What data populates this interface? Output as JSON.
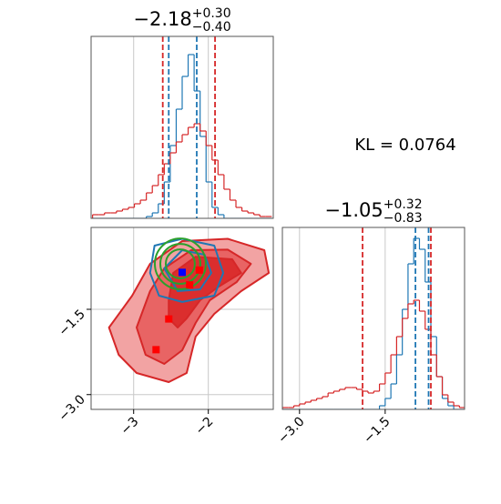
{
  "annotation": "KL = 0.0764",
  "chart_data": [
    {
      "type": "histogram",
      "title": {
        "value": "−2.18",
        "upper": "+0.30",
        "lower": "−0.40"
      },
      "xlim": [
        -3.57,
        -1.13
      ],
      "ylim": [
        0,
        100
      ],
      "xgrid": [
        -3,
        -2
      ],
      "bins": [
        -3.55,
        -3.47,
        -3.39,
        -3.31,
        -3.23,
        -3.15,
        -3.07,
        -2.99,
        -2.91,
        -2.83,
        -2.75,
        -2.67,
        -2.59,
        -2.51,
        -2.43,
        -2.35,
        -2.27,
        -2.19,
        -2.11,
        -2.03,
        -1.95,
        -1.87,
        -1.79,
        -1.71,
        -1.63,
        -1.55,
        -1.47,
        -1.39,
        -1.31,
        -1.23,
        -1.15
      ],
      "series": [
        {
          "color": "#1f77b4",
          "counts": [
            0,
            0,
            0,
            0,
            0,
            0,
            0,
            0,
            0,
            1,
            3,
            8,
            20,
            40,
            60,
            78,
            90,
            70,
            45,
            20,
            6,
            2,
            0,
            0,
            0,
            0,
            0,
            0,
            0,
            0
          ]
        },
        {
          "color": "#d62728",
          "counts": [
            2,
            2,
            3,
            3,
            4,
            5,
            6,
            8,
            10,
            14,
            18,
            24,
            30,
            36,
            42,
            46,
            50,
            52,
            48,
            40,
            32,
            24,
            16,
            10,
            6,
            4,
            3,
            2,
            1,
            1
          ]
        }
      ],
      "vlines": [
        {
          "value": -2.61,
          "color": "#d62728"
        },
        {
          "value": -1.91,
          "color": "#d62728"
        },
        {
          "value": -2.53,
          "color": "#1f77b4"
        },
        {
          "value": -2.155,
          "color": "#1f77b4"
        }
      ]
    },
    {
      "type": "contour",
      "xlim": [
        -3.57,
        -1.13
      ],
      "ylim": [
        -3.26,
        -0.06
      ],
      "xticks": [
        {
          "value": -3,
          "label": "−3"
        },
        {
          "value": -2,
          "label": "−2"
        }
      ],
      "yticks": [
        {
          "value": -1.5,
          "label": "−1.5"
        },
        {
          "value": -3,
          "label": "−3.0"
        }
      ],
      "grid": true,
      "contours": [
        {
          "fill": "#f2a3a3",
          "stroke": "#d62728",
          "x": [
            -3.02,
            -2.78,
            -2.35,
            -1.74,
            -1.25,
            -1.19,
            -1.56,
            -1.92,
            -2.17,
            -2.29,
            -2.53,
            -2.96,
            -3.2,
            -3.33
          ],
          "y": [
            -1.26,
            -0.7,
            -0.3,
            -0.26,
            -0.46,
            -0.86,
            -1.18,
            -1.58,
            -1.98,
            -2.62,
            -2.78,
            -2.62,
            -2.3,
            -1.82
          ]
        },
        {
          "fill": "#e86464",
          "stroke": "#d62728",
          "x": [
            -2.78,
            -2.59,
            -2.23,
            -1.74,
            -1.43,
            -1.62,
            -1.98,
            -2.17,
            -2.35,
            -2.59,
            -2.84,
            -2.96
          ],
          "y": [
            -1.18,
            -0.78,
            -0.46,
            -0.45,
            -0.7,
            -1.02,
            -1.34,
            -1.74,
            -2.22,
            -2.46,
            -2.3,
            -1.82
          ]
        },
        {
          "fill": "#db2e2e",
          "stroke": "#d62728",
          "x": [
            -2.53,
            -2.47,
            -2.17,
            -1.68,
            -1.56,
            -1.86,
            -2.11,
            -2.29,
            -2.41,
            -2.53
          ],
          "y": [
            -1.34,
            -0.86,
            -0.575,
            -0.62,
            -0.86,
            -1.1,
            -1.34,
            -1.66,
            -1.82,
            -1.66
          ]
        },
        {
          "fill": "none",
          "stroke": "#1f77b4",
          "x": [
            -2.78,
            -2.72,
            -2.35,
            -1.92,
            -1.8,
            -1.92,
            -2.35,
            -2.66
          ],
          "y": [
            -0.86,
            -0.38,
            -0.26,
            -0.38,
            -0.86,
            -1.26,
            -1.37,
            -1.26
          ]
        },
        {
          "fill": "none",
          "stroke": "#1f77b4",
          "x": [
            -2.59,
            -2.35,
            -2.05,
            -1.96,
            -2.11,
            -2.41
          ],
          "y": [
            -0.78,
            -0.46,
            -0.54,
            -0.86,
            -1.15,
            -1.18
          ]
        }
      ],
      "ellipses": {
        "color": "#2ca02c",
        "cx": -2.375,
        "cy": -0.7,
        "rx": [
          0.195,
          0.268,
          0.341
        ],
        "ry": [
          0.255,
          0.351,
          0.447
        ]
      },
      "points": [
        {
          "color": "#0000ff",
          "x": [
            -2.35
          ],
          "y": [
            -0.85
          ]
        },
        {
          "color": "#ff0000",
          "x": [
            -2.12,
            -2.25,
            -2.53,
            -2.7
          ],
          "y": [
            -0.81,
            -1.07,
            -1.67,
            -2.21
          ]
        }
      ]
    },
    {
      "type": "histogram",
      "title": {
        "value": "−1.05",
        "upper": "+0.32",
        "lower": "−0.83"
      },
      "xlim": [
        -3.3,
        -0.11
      ],
      "ylim": [
        0,
        100
      ],
      "xticks": [
        {
          "value": -3,
          "label": "−3.0"
        },
        {
          "value": -1.5,
          "label": "−1.5"
        }
      ],
      "xgrid": [
        -3,
        -1.5
      ],
      "bins": [
        -3.3,
        -3.2,
        -3.1,
        -3.0,
        -2.9,
        -2.8,
        -2.7,
        -2.6,
        -2.5,
        -2.4,
        -2.3,
        -2.2,
        -2.1,
        -2.0,
        -1.9,
        -1.8,
        -1.7,
        -1.6,
        -1.5,
        -1.4,
        -1.3,
        -1.2,
        -1.1,
        -1.0,
        -0.9,
        -0.8,
        -0.7,
        -0.6,
        -0.5,
        -0.4,
        -0.3,
        -0.2,
        -0.1
      ],
      "series": [
        {
          "color": "#1f77b4",
          "counts": [
            0,
            0,
            0,
            0,
            0,
            0,
            0,
            0,
            0,
            0,
            0,
            0,
            0,
            0,
            0,
            0,
            0,
            2,
            6,
            14,
            30,
            55,
            80,
            94,
            88,
            70,
            40,
            18,
            6,
            2,
            0,
            0
          ]
        },
        {
          "color": "#d62728",
          "counts": [
            1,
            1,
            2,
            3,
            4,
            5,
            6,
            7,
            9,
            10,
            11,
            12,
            12,
            11,
            10,
            9,
            10,
            14,
            20,
            30,
            40,
            50,
            58,
            60,
            54,
            44,
            30,
            18,
            8,
            4,
            2,
            1
          ]
        }
      ],
      "vlines": [
        {
          "value": -1.896,
          "color": "#d62728"
        },
        {
          "value": -0.7,
          "color": "#d62728"
        },
        {
          "value": -0.97,
          "color": "#1f77b4"
        },
        {
          "value": -0.74,
          "color": "#1f77b4"
        }
      ]
    }
  ]
}
